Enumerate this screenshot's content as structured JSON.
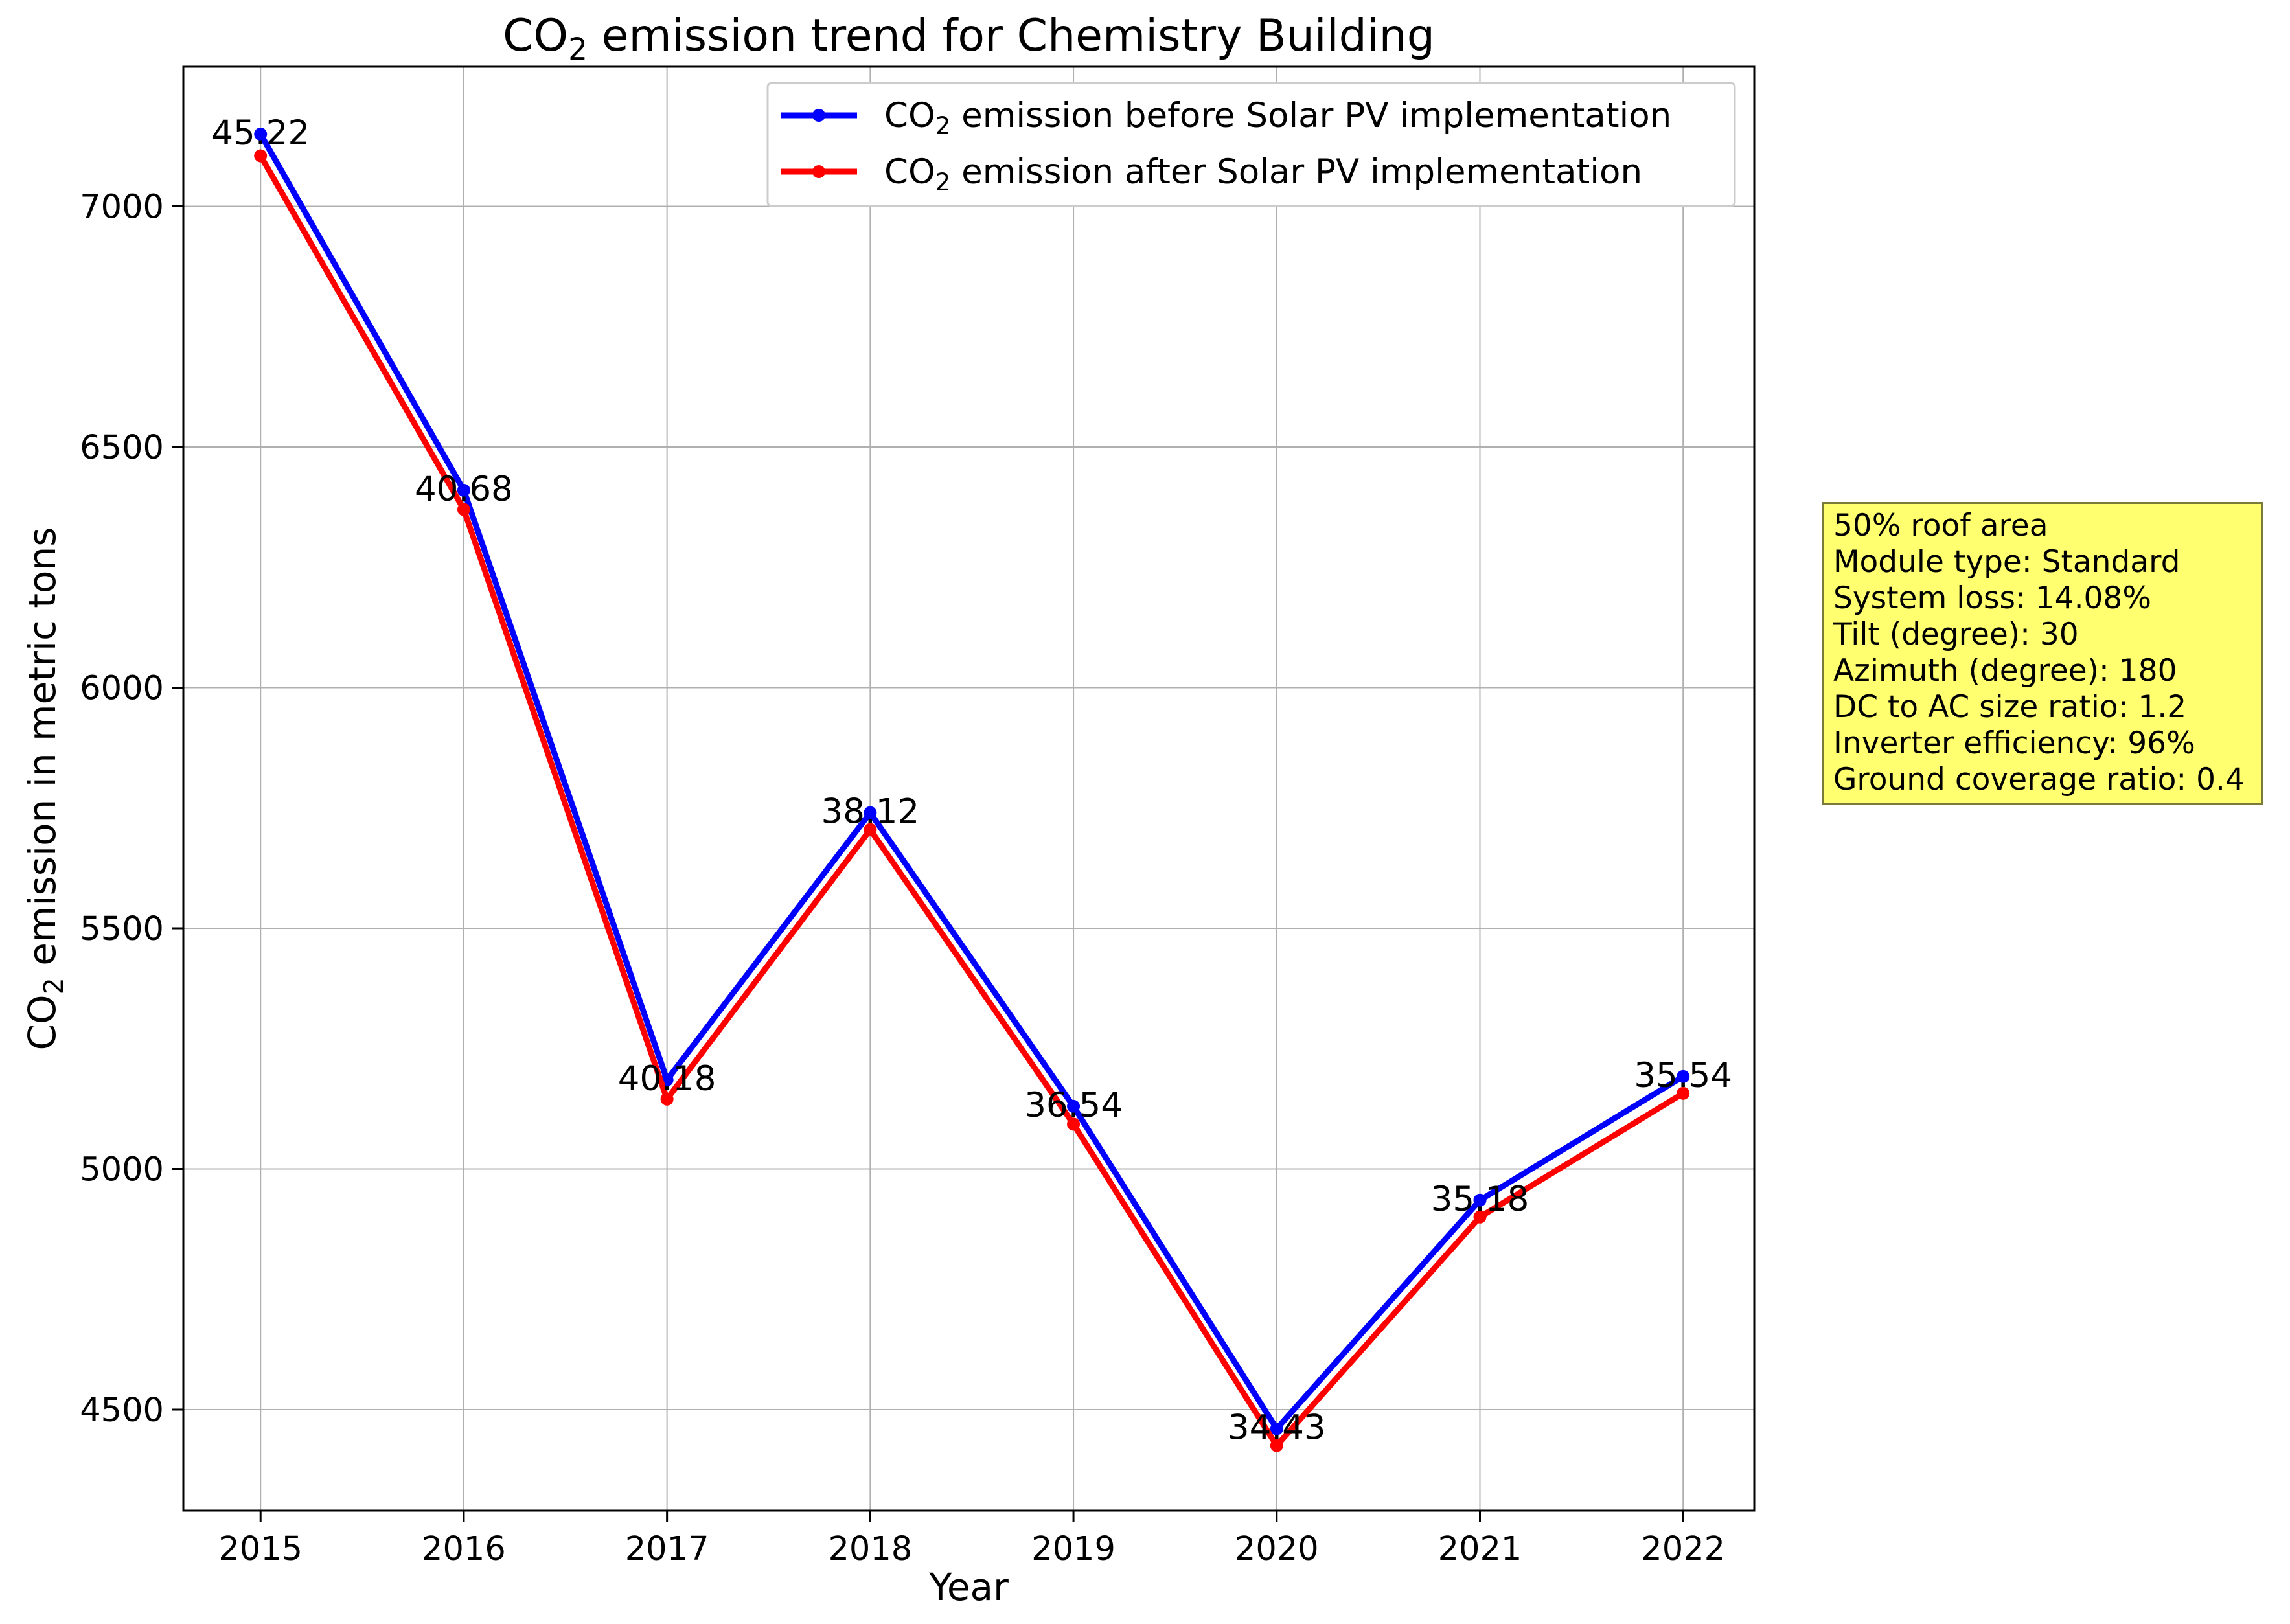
{
  "chart_data": {
    "type": "line",
    "title": "CO₂ emission trend for Chemistry Building",
    "title_parts": {
      "pre": "CO",
      "sub": "2",
      "post": " emission trend for Chemistry Building"
    },
    "xlabel": "Year",
    "ylabel": "CO₂ emission in metric tons",
    "ylabel_parts": {
      "pre": "CO",
      "sub": "2",
      "post": " emission in metric tons"
    },
    "x": [
      2015,
      2016,
      2017,
      2018,
      2019,
      2020,
      2021,
      2022
    ],
    "x_tick_labels": [
      "2015",
      "2016",
      "2017",
      "2018",
      "2019",
      "2020",
      "2021",
      "2022"
    ],
    "xlim": [
      2014.62,
      2022.35
    ],
    "ylim": [
      4290,
      7290
    ],
    "y_ticks": [
      4500,
      5000,
      5500,
      6000,
      6500,
      7000
    ],
    "y_tick_labels": [
      "4500",
      "5000",
      "5500",
      "6000",
      "6500",
      "7000"
    ],
    "grid": true,
    "legend_position": "top-right",
    "series": [
      {
        "name": "CO₂ emission before Solar PV implementation",
        "legend_parts": {
          "pre": "CO",
          "sub": "2",
          "post": " emission before Solar PV implementation"
        },
        "color": "#0000ff",
        "values": [
          7150,
          6410,
          5185,
          5740,
          5130,
          4460,
          4935,
          5192
        ]
      },
      {
        "name": "CO₂ emission after Solar PV implementation",
        "legend_parts": {
          "pre": "CO",
          "sub": "2",
          "post": " emission after Solar PV implementation"
        },
        "color": "#ff0000",
        "values": [
          7105,
          6370,
          5145,
          5705,
          5093,
          4425,
          4900,
          5157
        ]
      }
    ],
    "annotations": [
      "45.22",
      "40.68",
      "40.18",
      "38.12",
      "36.54",
      "34.43",
      "35.18",
      "35.54"
    ]
  },
  "info_box": {
    "lines": [
      "50% roof area",
      "Module type: Standard",
      "System loss: 14.08%",
      "Tilt (degree): 30",
      "Azimuth (degree): 180",
      "DC to AC size ratio: 1.2",
      "Inverter efficiency: 96%",
      "Ground coverage ratio: 0.4"
    ]
  }
}
